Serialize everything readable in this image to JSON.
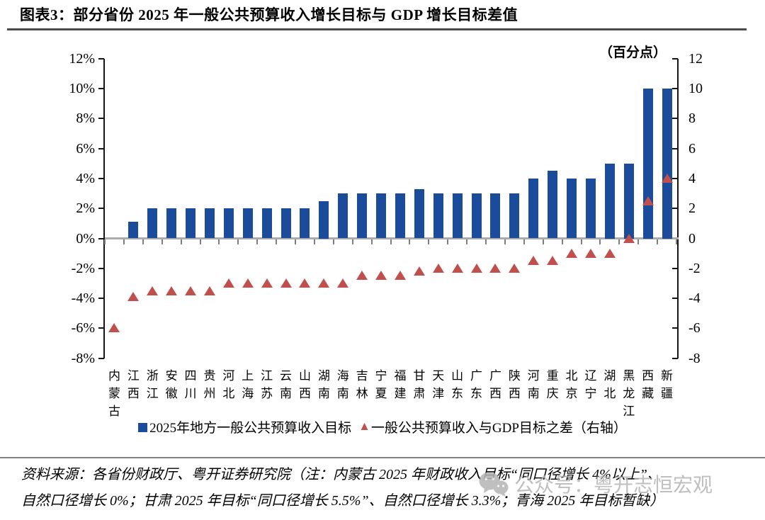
{
  "title": "图表3：部分省份 2025 年一般公共预算收入增长目标与 GDP 增长目标差值",
  "chart_data": {
    "type": "bar",
    "categories": [
      "内蒙古",
      "江西",
      "浙江",
      "安徽",
      "四川",
      "贵州",
      "河北",
      "上海",
      "江苏",
      "云南",
      "山西",
      "湖南",
      "海南",
      "吉林",
      "宁夏",
      "福建",
      "甘肃",
      "天津",
      "山东",
      "广东",
      "广西",
      "陕西",
      "河南",
      "重庆",
      "北京",
      "辽宁",
      "湖北",
      "黑龙江",
      "西藏",
      "新疆"
    ],
    "series": [
      {
        "name": "2025年地方一般公共预算收入目标",
        "type": "bar",
        "axis": "left",
        "color": "#1B4B9B",
        "values": [
          0,
          1.1,
          2,
          2,
          2,
          2,
          2,
          2,
          2,
          2,
          2,
          2.5,
          3,
          3,
          3,
          3,
          3.3,
          3,
          3,
          3,
          3,
          3,
          4,
          4.5,
          4,
          4,
          5,
          5,
          10,
          10
        ]
      },
      {
        "name": "一般公共预算收入与GDP目标之差（右轴）",
        "type": "scatter",
        "marker": "triangle",
        "axis": "right",
        "color": "#C0504D",
        "values": [
          -6,
          -3.9,
          -3.5,
          -3.5,
          -3.5,
          -3.5,
          -3,
          -3,
          -3,
          -3,
          -3,
          -3,
          -3,
          -2.5,
          -2.5,
          -2.5,
          -2.2,
          -2,
          -2,
          -2,
          -2,
          -2,
          -1.5,
          -1.5,
          -1,
          -1,
          -1,
          0,
          2.5,
          4
        ]
      }
    ],
    "left_axis": {
      "tick_labels": [
        "12%",
        "10%",
        "8%",
        "6%",
        "4%",
        "2%",
        "0%",
        "-2%",
        "-4%",
        "-6%",
        "-8%"
      ],
      "tick_values": [
        12,
        10,
        8,
        6,
        4,
        2,
        0,
        -2,
        -4,
        -6,
        -8
      ],
      "min": -8,
      "max": 12
    },
    "right_axis": {
      "label": "（百分点）",
      "tick_labels": [
        "12",
        "10",
        "8",
        "6",
        "4",
        "2",
        "0",
        "-2",
        "-4",
        "-6",
        "-8"
      ],
      "tick_values": [
        12,
        10,
        8,
        6,
        4,
        2,
        0,
        -2,
        -4,
        -6,
        -8
      ],
      "min": -8,
      "max": 12
    },
    "ylim": [
      -8,
      12
    ],
    "grid": "off",
    "legend_position": "bottom"
  },
  "footer": {
    "line1": "资料来源：各省份财政厅、粤开证券研究院（注：内蒙古 2025 年财政收入目标“同口径增长 4%以上”、",
    "line2": "自然口径增长 0%；甘肃 2025 年目标“同口径增长 5.5%”、自然口径增长 3.3%；青海 2025 年目标暂缺）"
  },
  "watermark": {
    "text": "公众号：粤开志恒宏观"
  }
}
